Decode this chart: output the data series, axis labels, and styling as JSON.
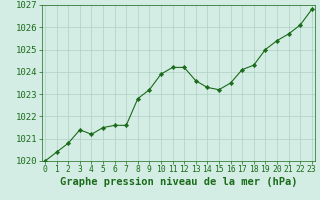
{
  "x": [
    0,
    1,
    2,
    3,
    4,
    5,
    6,
    7,
    8,
    9,
    10,
    11,
    12,
    13,
    14,
    15,
    16,
    17,
    18,
    19,
    20,
    21,
    22,
    23
  ],
  "y": [
    1020.0,
    1020.4,
    1020.8,
    1021.4,
    1021.2,
    1021.5,
    1021.6,
    1021.6,
    1022.8,
    1023.2,
    1023.9,
    1024.2,
    1024.2,
    1023.6,
    1023.3,
    1023.2,
    1023.5,
    1024.1,
    1024.3,
    1025.0,
    1025.4,
    1025.7,
    1026.1,
    1026.8
  ],
  "ylim": [
    1020,
    1027
  ],
  "yticks": [
    1020,
    1021,
    1022,
    1023,
    1024,
    1025,
    1026,
    1027
  ],
  "xticks": [
    0,
    1,
    2,
    3,
    4,
    5,
    6,
    7,
    8,
    9,
    10,
    11,
    12,
    13,
    14,
    15,
    16,
    17,
    18,
    19,
    20,
    21,
    22,
    23
  ],
  "line_color": "#1a6b1a",
  "marker_color": "#1a6b1a",
  "bg_plot": "#d4ede4",
  "bg_fig": "#d4ede4",
  "grid_color": "#b0cfc4",
  "xlabel": "Graphe pression niveau de la mer (hPa)",
  "xlabel_color": "#1a6b1a",
  "tick_color": "#1a6b1a",
  "xlabel_fontsize": 7.5,
  "ytick_fontsize": 6.5,
  "xtick_fontsize": 5.8
}
